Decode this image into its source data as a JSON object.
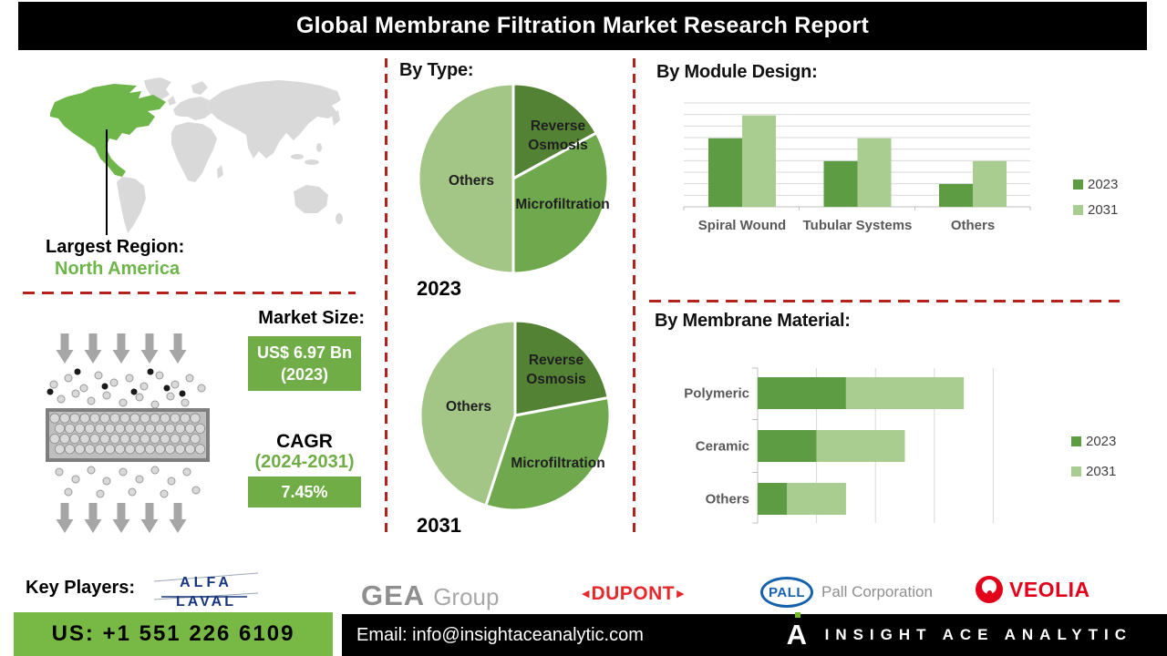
{
  "header": {
    "title": "Global Membrane Filtration Market Research Report"
  },
  "map": {
    "largest_region_label": "Largest Region:",
    "largest_region_value": "North America"
  },
  "market_size": {
    "label": "Market Size:",
    "value": "US$ 6.97 Bn",
    "year": "(2023)"
  },
  "cagr": {
    "label": "CAGR",
    "period": "(2024-2031)",
    "value": "7.45%"
  },
  "key_players": {
    "label": "Key Players:",
    "alfa_laval": {
      "line1": "ALFA",
      "line2": "LAVAL"
    },
    "gea": {
      "name": "GEA",
      "suffix": "Group"
    },
    "dupont": {
      "name": "DUPONT"
    },
    "pall": {
      "badge": "PALL",
      "name": "Pall Corporation"
    },
    "veolia": {
      "name": "VEOLIA"
    }
  },
  "footer": {
    "phone": "US: +1 551 226 6109",
    "email": "Email: info@insightaceanalytic.com",
    "brand": "INSIGHT ACE ANALYTIC"
  },
  "colors": {
    "accent_green": "#70ad47",
    "phone_green": "#78b844",
    "north_america_green": "#6eb54a",
    "slice_dark_green": "#548235",
    "slice_mid_green": "#70a84e",
    "slice_light_green": "#a3c585",
    "series_2023_green": "#5e9c44",
    "series_2031_green": "#a9cc90",
    "dashed_divider_red": "#b3221c",
    "map_gray": "#d9d9d9",
    "dupont_red": "#e8272c",
    "veolia_red": "#e2001a",
    "pall_blue": "#1462ad",
    "alfa_laval_navy": "#16357c"
  },
  "chart_data": [
    {
      "id": "pie_2023",
      "type": "pie",
      "title": "By Type:",
      "year_label": "2023",
      "labels": [
        "Reverse Osmosis",
        "Microfiltration",
        "Others"
      ],
      "values_pct": [
        17,
        33,
        50
      ],
      "colors": [
        "#548235",
        "#70a84e",
        "#a3c585"
      ],
      "legend_position": "none"
    },
    {
      "id": "pie_2031",
      "type": "pie",
      "year_label": "2031",
      "labels": [
        "Reverse Osmosis",
        "Microfiltration",
        "Others"
      ],
      "values_pct": [
        22,
        33,
        45
      ],
      "colors": [
        "#548235",
        "#70a84e",
        "#a3c585"
      ],
      "legend_position": "none"
    },
    {
      "id": "module_design",
      "type": "bar",
      "title": "By Module Design:",
      "categories": [
        "Spiral Wound",
        "Tubular Systems",
        "Others"
      ],
      "series": [
        {
          "name": "2023",
          "color": "#5e9c44",
          "values": [
            66,
            44,
            22
          ]
        },
        {
          "name": "2031",
          "color": "#a9cc90",
          "values": [
            88,
            66,
            44
          ]
        }
      ],
      "ylim": [
        0,
        100
      ],
      "grid": true,
      "legend_position": "right"
    },
    {
      "id": "membrane_material",
      "type": "stacked-hbar",
      "title": "By Membrane Material:",
      "categories": [
        "Polymeric",
        "Ceramic",
        "Others"
      ],
      "series": [
        {
          "name": "2023",
          "color": "#5e9c44",
          "values": [
            1.5,
            1.0,
            0.5
          ]
        },
        {
          "name": "2031",
          "color": "#a9cc90",
          "values": [
            2.0,
            1.5,
            1.0
          ]
        }
      ],
      "xlim": [
        0,
        4
      ],
      "grid": true,
      "legend_position": "right"
    }
  ]
}
